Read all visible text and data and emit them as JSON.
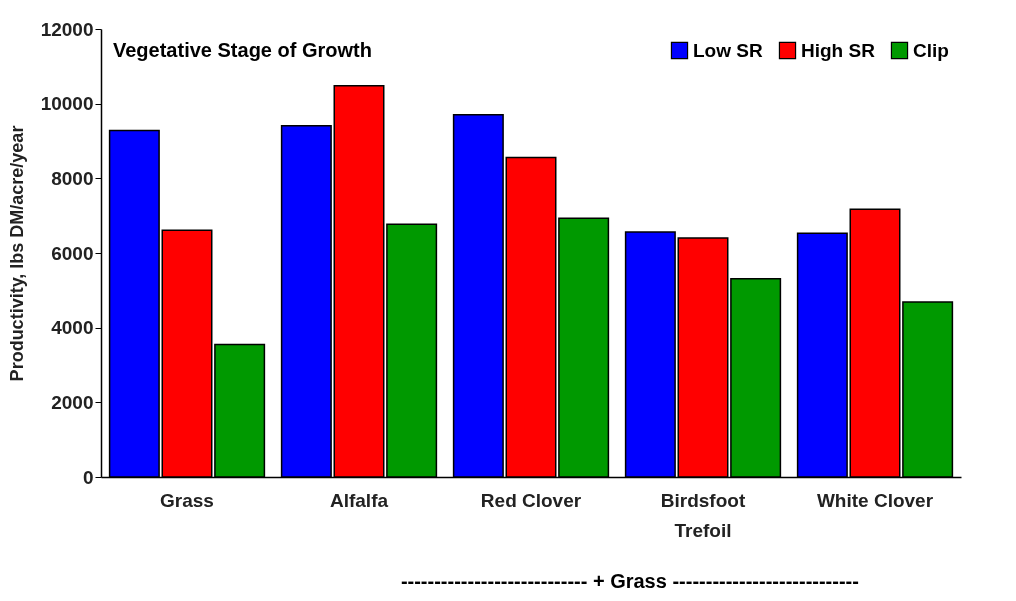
{
  "chart_data": {
    "type": "bar",
    "title": "Vegetative Stage of Growth",
    "ylabel": "Productivity, lbs DM/acre/year",
    "categories": [
      "Grass",
      "Alfalfa",
      "Red Clover",
      "Birdsfoot Trefoil",
      "White Clover"
    ],
    "series": [
      {
        "name": "Low SR",
        "color": "#0000ff",
        "values": [
          9280,
          9410,
          9700,
          6560,
          6530
        ]
      },
      {
        "name": "High SR",
        "color": "#ff0000",
        "values": [
          6610,
          10480,
          8560,
          6400,
          7170
        ]
      },
      {
        "name": "Clip",
        "color": "#009900",
        "values": [
          3550,
          6770,
          6930,
          5310,
          4690
        ]
      }
    ],
    "ylim": [
      0,
      12000
    ],
    "yticks": [
      0,
      2000,
      4000,
      6000,
      8000,
      10000,
      12000
    ],
    "grid": false,
    "legend": "top right",
    "annotations": [
      "---------------------------- + Grass ----------------------------"
    ]
  }
}
